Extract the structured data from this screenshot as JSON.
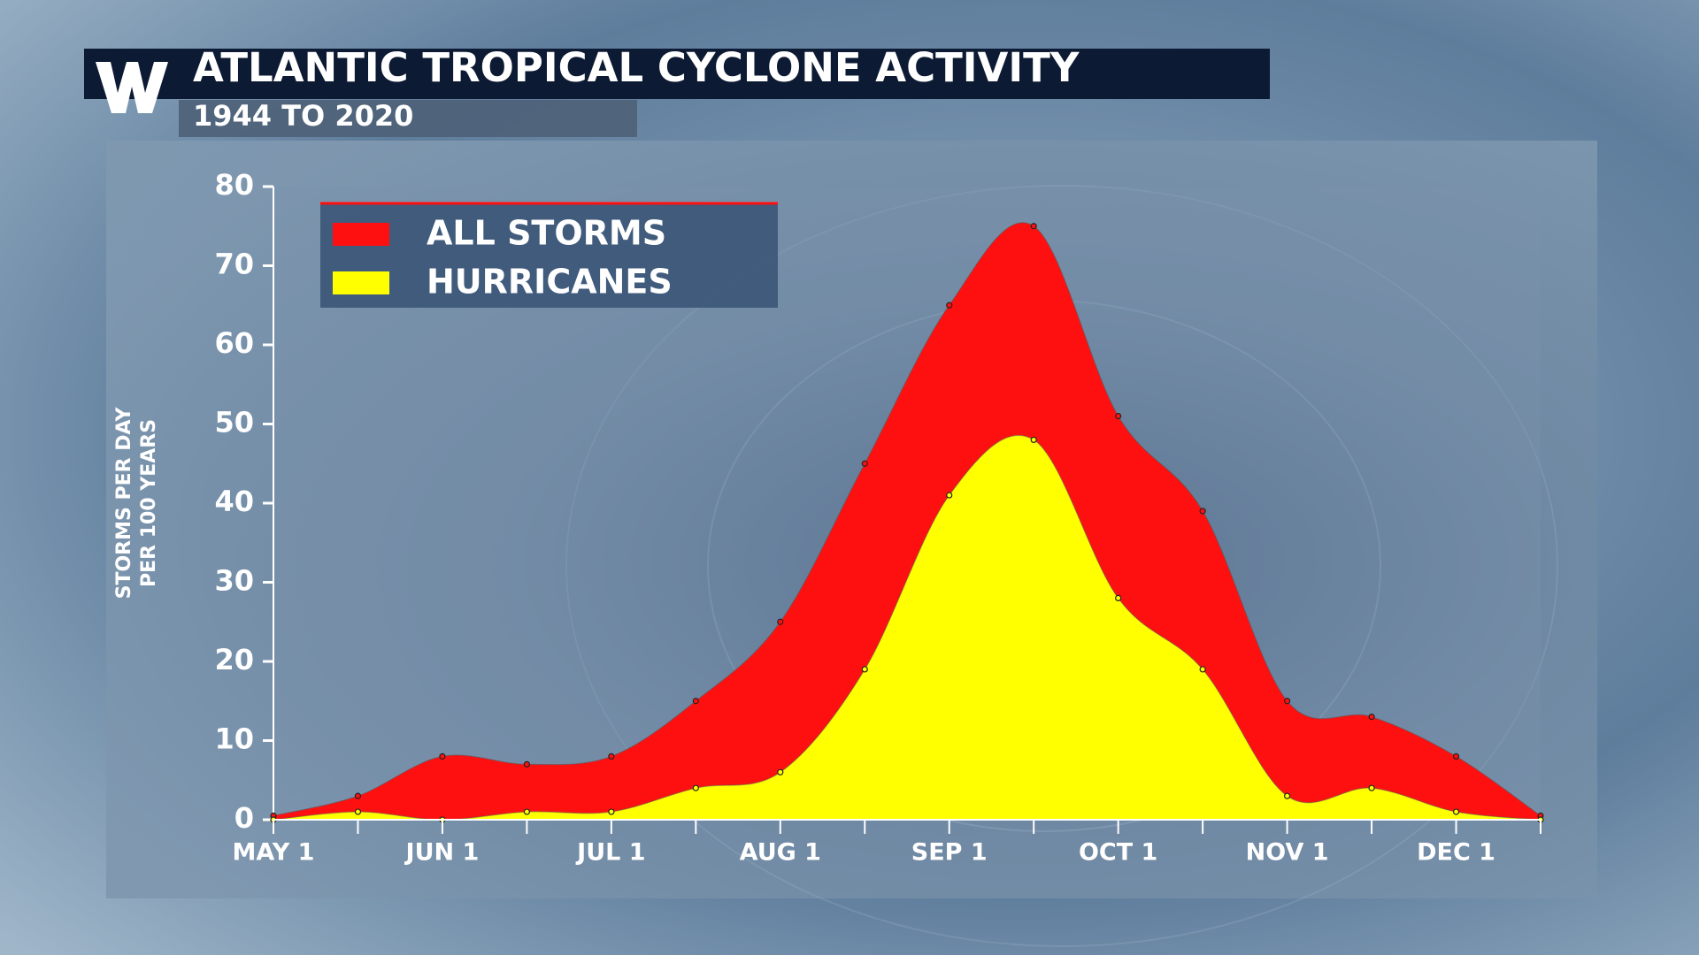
{
  "chart_data": {
    "type": "area",
    "title": "ATLANTIC TROPICAL CYCLONE ACTIVITY",
    "subtitle": "1944 TO 2020",
    "ylabel_lines": [
      "STORMS PER DAY",
      "PER 100 YEARS"
    ],
    "categories": [
      "MAY 1",
      null,
      "JUN 1",
      null,
      "JUL 1",
      null,
      "AUG 1",
      null,
      "SEP 1",
      null,
      "OCT 1",
      null,
      "NOV 1",
      null,
      "DEC 1",
      null
    ],
    "series": [
      {
        "name": "ALL STORMS",
        "color": "#ff1010",
        "values": [
          0.5,
          3,
          8,
          7,
          8,
          15,
          25,
          45,
          65,
          75,
          51,
          39,
          15,
          13,
          8,
          0.5
        ]
      },
      {
        "name": "HURRICANES",
        "color": "#ffff00",
        "values": [
          0,
          1,
          0,
          1,
          1,
          4,
          6,
          19,
          41,
          48,
          28,
          19,
          3,
          4,
          1,
          0
        ]
      }
    ],
    "ylim": [
      0,
      80
    ],
    "yticks": [
      0,
      10,
      20,
      30,
      40,
      50,
      60,
      70,
      80
    ],
    "legend": "upper left"
  }
}
